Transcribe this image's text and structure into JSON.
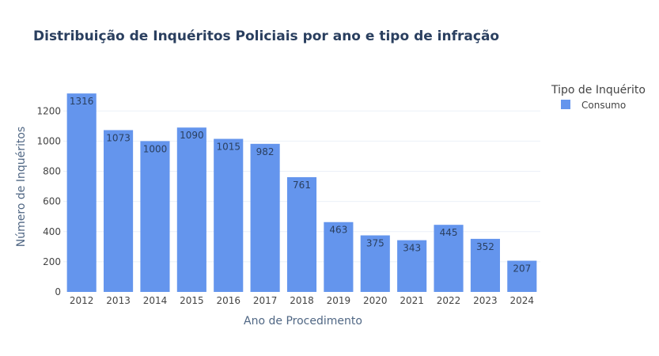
{
  "chart_data": {
    "type": "bar",
    "title": "Distribuição de Inquéritos Policiais por ano e tipo de infração",
    "xlabel": "Ano de Procedimento",
    "ylabel": "Número de Inquéritos",
    "categories": [
      "2012",
      "2013",
      "2014",
      "2015",
      "2016",
      "2017",
      "2018",
      "2019",
      "2020",
      "2021",
      "2022",
      "2023",
      "2024"
    ],
    "series": [
      {
        "name": "Consumo",
        "values": [
          1316,
          1073,
          1000,
          1090,
          1015,
          982,
          761,
          463,
          375,
          343,
          445,
          352,
          207
        ],
        "color": "#6495ED"
      }
    ],
    "ylim": [
      0,
      1385
    ],
    "yticks": [
      0,
      200,
      400,
      600,
      800,
      1000,
      1200
    ],
    "grid": true,
    "legend": {
      "title": "Tipo de Inquérito",
      "placement": "top-right"
    }
  }
}
